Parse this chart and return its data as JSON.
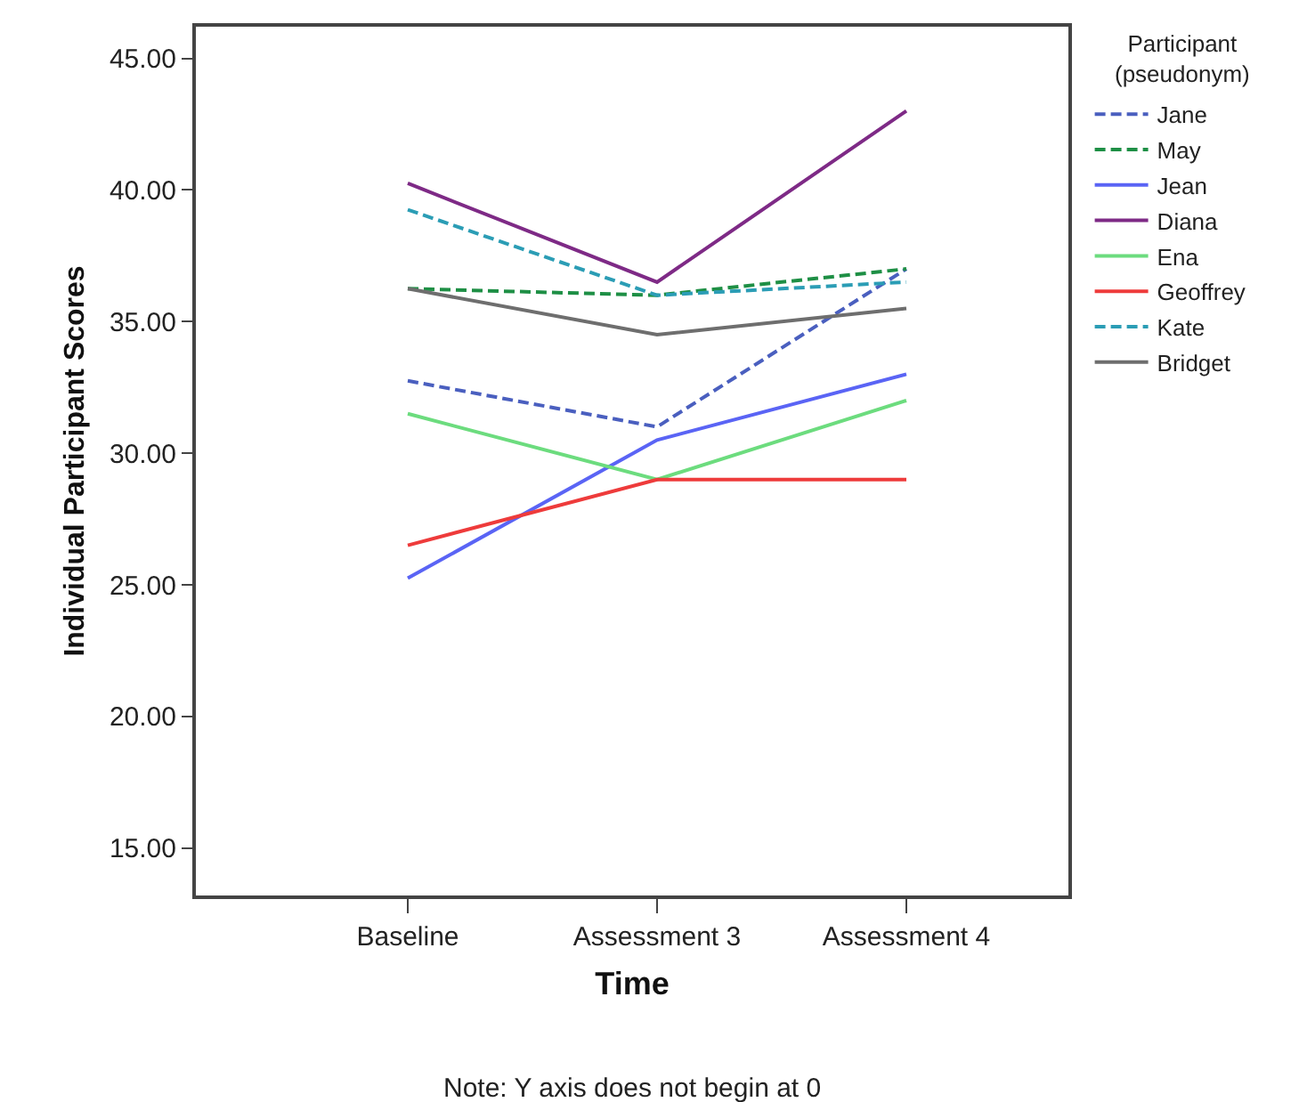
{
  "chart_data": {
    "type": "line",
    "xlabel": "Time",
    "ylabel": "Individual Participant Scores",
    "legend_title": "Participant (pseudonym)",
    "annotations": [
      "Note: Y axis does not begin at 0"
    ],
    "categories": [
      "Baseline",
      "Assessment 3",
      "Assessment 4"
    ],
    "series": [
      {
        "name": "Jane",
        "color": "#4a5fbf",
        "values": [
          32.75,
          31,
          37
        ],
        "line_style": "dashed"
      },
      {
        "name": "May",
        "color": "#1e8f45",
        "values": [
          36.25,
          36,
          37
        ],
        "line_style": "dashed"
      },
      {
        "name": "Jean",
        "color": "#5a64f5",
        "values": [
          25.25,
          30.5,
          33
        ]
      },
      {
        "name": "Diana",
        "color": "#7e2a86",
        "values": [
          40.25,
          36.5,
          43
        ]
      },
      {
        "name": "Ena",
        "color": "#6cdc7e",
        "values": [
          31.5,
          29,
          32
        ]
      },
      {
        "name": "Geoffrey",
        "color": "#ee3b3b",
        "values": [
          26.5,
          29,
          29
        ]
      },
      {
        "name": "Kate",
        "color": "#2b9db5",
        "values": [
          39.25,
          36,
          36.5
        ],
        "line_style": "dashed"
      },
      {
        "name": "Bridget",
        "color": "#6e6e6e",
        "values": [
          36.25,
          34.5,
          35.5
        ]
      }
    ],
    "ylim": [
      13.2,
      46.2
    ],
    "yticks": [
      {
        "value": 15,
        "label": "15.00"
      },
      {
        "value": 20,
        "label": "20.00"
      },
      {
        "value": 25,
        "label": "25.00"
      },
      {
        "value": 30,
        "label": "30.00"
      },
      {
        "value": 35,
        "label": "35.00"
      },
      {
        "value": 40,
        "label": "40.00"
      },
      {
        "value": 45,
        "label": "45.00"
      }
    ],
    "grid": false,
    "legend": "right",
    "marker": "none",
    "line_style": "solid"
  }
}
